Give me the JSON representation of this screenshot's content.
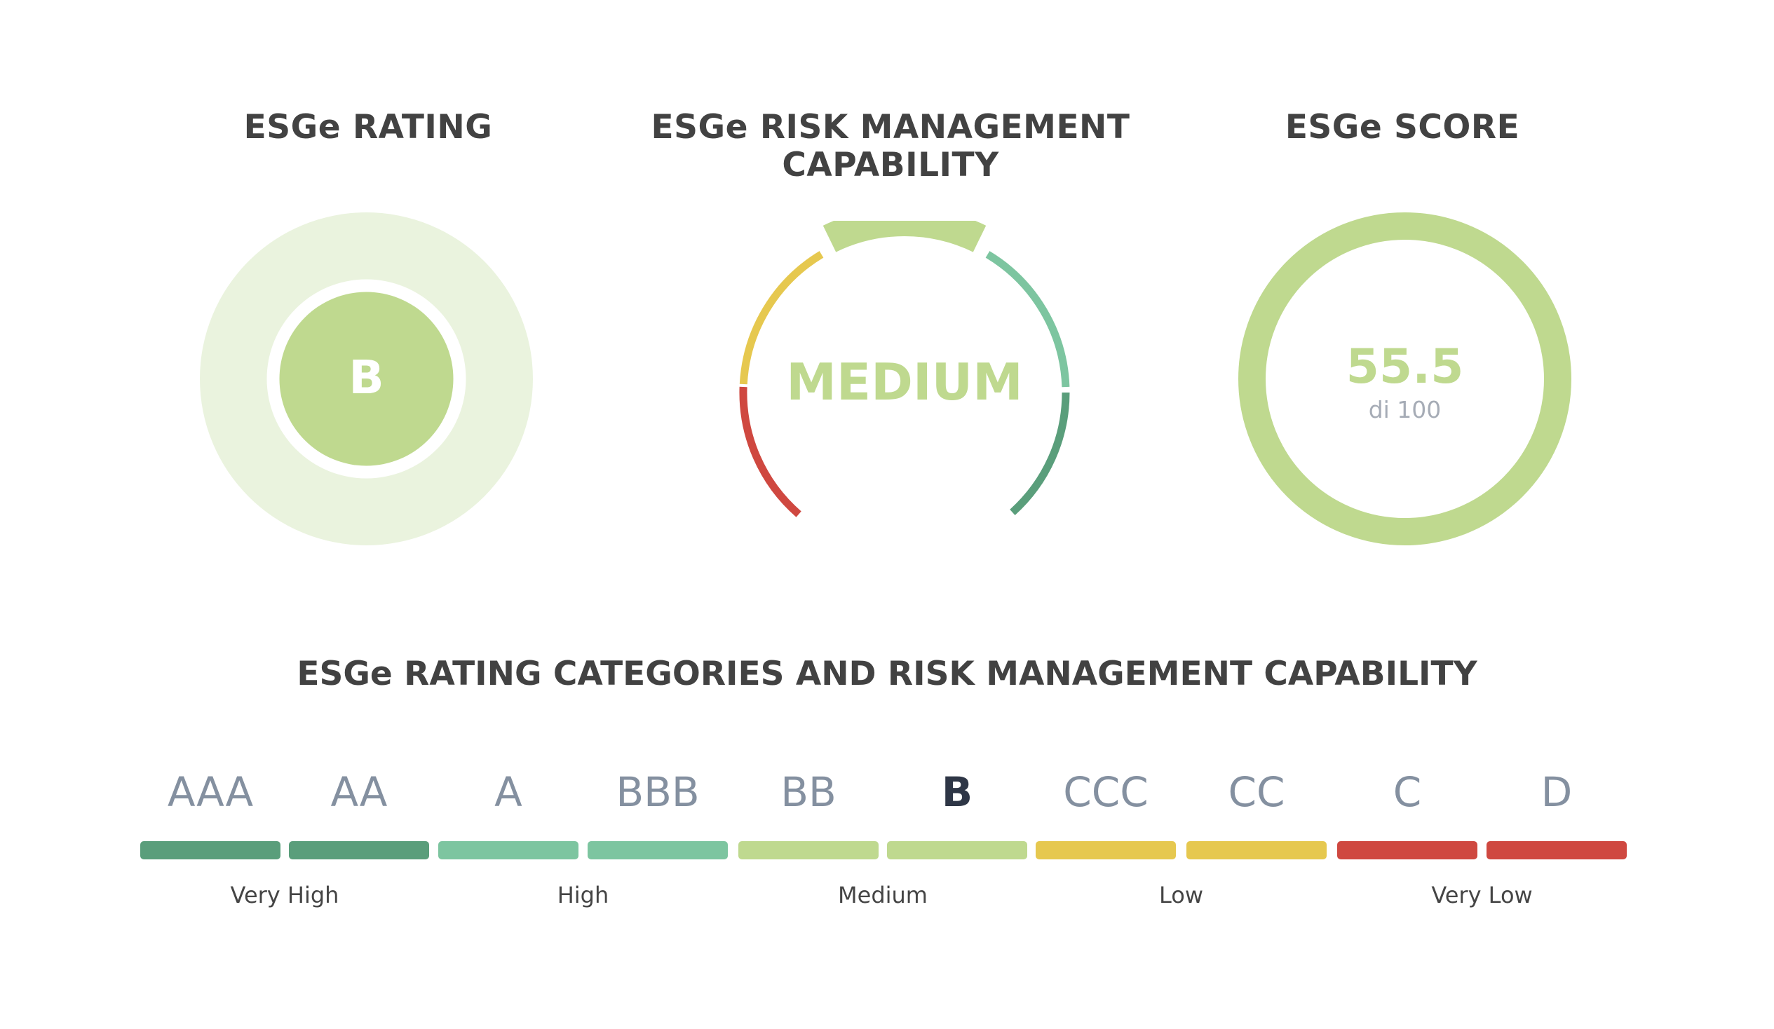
{
  "panels": {
    "rating": {
      "title": "ESGe RATING",
      "value": "B"
    },
    "rmc": {
      "title_line1": "ESGe RISK MANAGEMENT",
      "title_line2": "CAPABILITY",
      "value": "MEDIUM"
    },
    "score": {
      "title": "ESGe SCORE",
      "value": "55.5",
      "caption": "di 100",
      "score_fraction": 0.555
    }
  },
  "categories": {
    "title": "ESGe RATING CATEGORIES AND RISK MANAGEMENT CAPABILITY",
    "grades": [
      {
        "label": "AAA",
        "color": "#5a9e7b"
      },
      {
        "label": "AA",
        "color": "#5a9e7b"
      },
      {
        "label": "A",
        "color": "#7dc5a0"
      },
      {
        "label": "BBB",
        "color": "#7dc5a0"
      },
      {
        "label": "BB",
        "color": "#bfd98f"
      },
      {
        "label": "B",
        "color": "#bfd98f",
        "active": true
      },
      {
        "label": "CCC",
        "color": "#e6c84f"
      },
      {
        "label": "CC",
        "color": "#e6c84f"
      },
      {
        "label": "C",
        "color": "#cf4840"
      },
      {
        "label": "D",
        "color": "#cf4840"
      }
    ],
    "levels": [
      "Very High",
      "High",
      "Medium",
      "Low",
      "Very Low"
    ]
  },
  "colors": {
    "title_text": "#424242",
    "accent_green": "#bfd98f",
    "rating_halo": "#eaf3de",
    "caption_gray": "#a6acb6",
    "gauge_segments": [
      "#cf4840",
      "#e6c84f",
      "#bfd98f",
      "#7dc5a0",
      "#5a9e7b"
    ]
  }
}
